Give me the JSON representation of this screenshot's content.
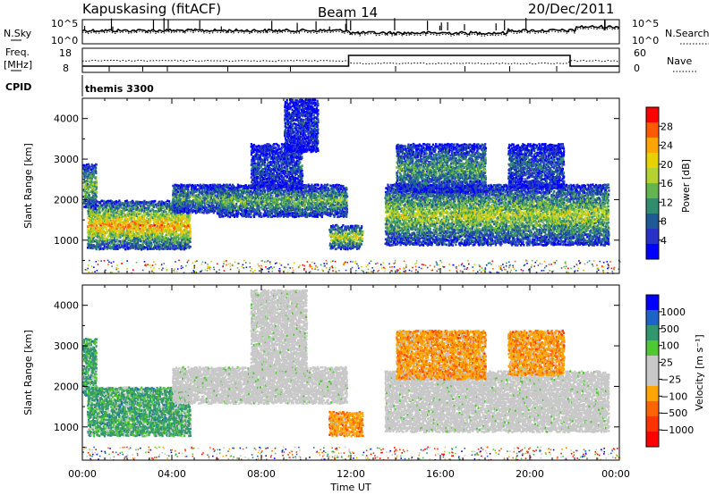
{
  "header": {
    "station": "Kapuskasing (fitACF)",
    "beam": "Beam 14",
    "date": "20/Dec/2011"
  },
  "noise_panel": {
    "left_label": "N.Sky",
    "right_label": "N.Search",
    "left_ticks": [
      "10^5",
      "10^0"
    ],
    "right_ticks": [
      "10^5",
      "10^0"
    ]
  },
  "freq_panel": {
    "left_label_1": "Freq.",
    "left_label_2": "[MHz]",
    "right_label": "Nave",
    "left_ticks": [
      "18",
      "8"
    ],
    "right_ticks": [
      "60",
      "0"
    ]
  },
  "cpid_panel": {
    "label": "CPID",
    "value": "themis 3300"
  },
  "colors": {
    "axis": "#000000",
    "background": "#ffffff"
  },
  "chart_data": [
    {
      "type": "heatmap",
      "name": "power",
      "ylabel": "Slant Range [km]",
      "ylim": [
        180,
        4500
      ],
      "yticks": [
        1000,
        2000,
        3000,
        4000
      ],
      "xlim": [
        0,
        24
      ],
      "colorbar": {
        "label": "Power [dB]",
        "ticks": [
          "28",
          "24",
          "20",
          "16",
          "12",
          "8",
          "4"
        ],
        "colors": [
          "#ff0000",
          "#ff5a00",
          "#ffa500",
          "#e6d200",
          "#b4d232",
          "#64b450",
          "#328c6e",
          "#1e5a96",
          "#2832c8",
          "#0000ff"
        ]
      },
      "regions": [
        {
          "t": [
            0.2,
            4.8
          ],
          "r": [
            800,
            2000
          ],
          "level": 0.75
        },
        {
          "t": [
            0.0,
            0.6
          ],
          "r": [
            1800,
            2900
          ],
          "level": 0.5
        },
        {
          "t": [
            4.0,
            6.5
          ],
          "r": [
            1700,
            2400
          ],
          "level": 0.4
        },
        {
          "t": [
            6.0,
            11.8
          ],
          "r": [
            1600,
            2400
          ],
          "level": 0.45
        },
        {
          "t": [
            7.5,
            9.8
          ],
          "r": [
            2300,
            3400
          ],
          "level": 0.2
        },
        {
          "t": [
            9.0,
            10.5
          ],
          "r": [
            3200,
            4500
          ],
          "level": 0.15
        },
        {
          "t": [
            13.5,
            23.5
          ],
          "r": [
            900,
            2400
          ],
          "level": 0.55
        },
        {
          "t": [
            14.0,
            18.0
          ],
          "r": [
            2200,
            3400
          ],
          "level": 0.4
        },
        {
          "t": [
            19.0,
            21.5
          ],
          "r": [
            2300,
            3400
          ],
          "level": 0.25
        },
        {
          "t": [
            11.0,
            12.5
          ],
          "r": [
            800,
            1400
          ],
          "level": 0.6
        }
      ]
    },
    {
      "type": "heatmap",
      "name": "velocity",
      "ylabel": "Slant Range [km]",
      "ylim": [
        180,
        4500
      ],
      "yticks": [
        1000,
        2000,
        3000,
        4000
      ],
      "xlim": [
        0,
        24
      ],
      "xticks": [
        "00:00",
        "04:00",
        "08:00",
        "12:00",
        "16:00",
        "20:00",
        "00:00"
      ],
      "xlabel": "Time UT",
      "colorbar": {
        "label": "Velocity  [m s⁻¹]",
        "ticks": [
          "1000",
          "500",
          "100",
          "25",
          "−25",
          "−100",
          "−500",
          "−1000"
        ],
        "colors": [
          "#0000ff",
          "#1e64c8",
          "#32966e",
          "#50c832",
          "#c8c8c8",
          "#c8c8c8",
          "#ffa500",
          "#ff6400",
          "#ff3200",
          "#ff0000"
        ]
      },
      "regions": [
        {
          "t": [
            0.2,
            4.8
          ],
          "r": [
            800,
            2000
          ],
          "vel": "green"
        },
        {
          "t": [
            0.0,
            0.6
          ],
          "r": [
            1800,
            3200
          ],
          "vel": "green"
        },
        {
          "t": [
            4.0,
            11.8
          ],
          "r": [
            1600,
            2500
          ],
          "vel": "grey"
        },
        {
          "t": [
            7.5,
            10.0
          ],
          "r": [
            2300,
            4400
          ],
          "vel": "grey"
        },
        {
          "t": [
            11.0,
            12.5
          ],
          "r": [
            800,
            1400
          ],
          "vel": "orange"
        },
        {
          "t": [
            13.5,
            23.5
          ],
          "r": [
            900,
            2400
          ],
          "vel": "grey"
        },
        {
          "t": [
            14.0,
            18.0
          ],
          "r": [
            2200,
            3400
          ],
          "vel": "orange"
        },
        {
          "t": [
            19.0,
            21.5
          ],
          "r": [
            2300,
            3400
          ],
          "vel": "orange"
        }
      ]
    }
  ]
}
